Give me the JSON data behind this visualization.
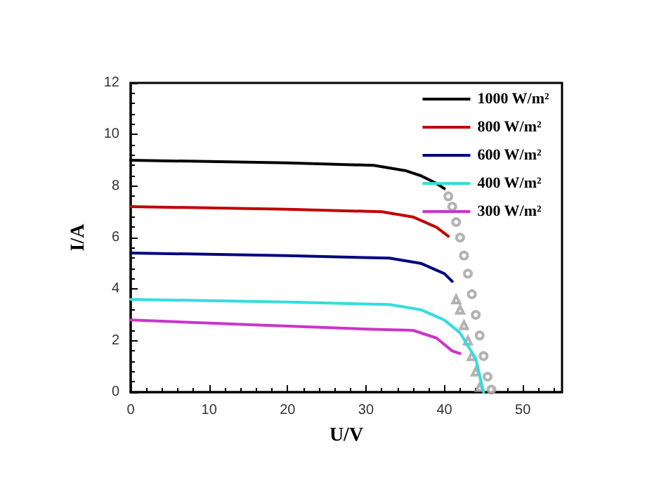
{
  "chart_data": {
    "type": "line",
    "xlabel": "U/V",
    "ylabel": "I/A",
    "xlim": [
      0,
      55
    ],
    "xticks": [
      0,
      10,
      20,
      30,
      40,
      50
    ],
    "ylim": [
      0,
      12
    ],
    "yticks": [
      0,
      2,
      4,
      6,
      8,
      10,
      12
    ],
    "grid": false,
    "legend": "top right",
    "marker": "none",
    "line_style": "solid",
    "series": [
      {
        "name": "1000 W/m²",
        "color": "#000000",
        "x": [
          0,
          10,
          20,
          31,
          35,
          37,
          39,
          40
        ],
        "values": [
          9.0,
          8.95,
          8.9,
          8.8,
          8.6,
          8.4,
          8.1,
          7.9
        ]
      },
      {
        "name": "800 W/m²",
        "color": "#c00000",
        "x": [
          0,
          20,
          32,
          36,
          39,
          40.5
        ],
        "values": [
          7.2,
          7.1,
          7.0,
          6.8,
          6.4,
          6.05
        ]
      },
      {
        "name": "600 W/m²",
        "color": "#000080",
        "x": [
          0,
          20,
          33,
          37,
          40,
          41
        ],
        "values": [
          5.4,
          5.3,
          5.2,
          5.0,
          4.6,
          4.3
        ]
      },
      {
        "name": "400 W/m²",
        "color": "#33dddd",
        "x": [
          0,
          20,
          33,
          37,
          40,
          42,
          44,
          45
        ],
        "values": [
          3.6,
          3.5,
          3.4,
          3.2,
          2.8,
          2.3,
          1.3,
          0
        ]
      },
      {
        "name": "300 W/m²",
        "color": "#cc33cc",
        "x": [
          0,
          17,
          30,
          36,
          39,
          41,
          42
        ],
        "values": [
          2.8,
          2.6,
          2.45,
          2.4,
          2.1,
          1.6,
          1.5
        ]
      },
      {
        "type": "scatter",
        "marker": "circle",
        "color": "#a0a0a0",
        "x": [
          40.5,
          41,
          41.5,
          42,
          42.5,
          43,
          43.5,
          44,
          44.5,
          45,
          45.5,
          46
        ],
        "values": [
          7.6,
          7.2,
          6.6,
          6.0,
          5.3,
          4.6,
          3.8,
          3.0,
          2.2,
          1.4,
          0.6,
          0.1
        ]
      },
      {
        "type": "scatter",
        "marker": "triangle",
        "color": "#a0a0a0",
        "x": [
          41.5,
          42,
          42.5,
          43,
          43.5,
          44,
          44.5
        ],
        "values": [
          3.6,
          3.2,
          2.6,
          2.0,
          1.4,
          0.8,
          0.2
        ]
      }
    ]
  }
}
